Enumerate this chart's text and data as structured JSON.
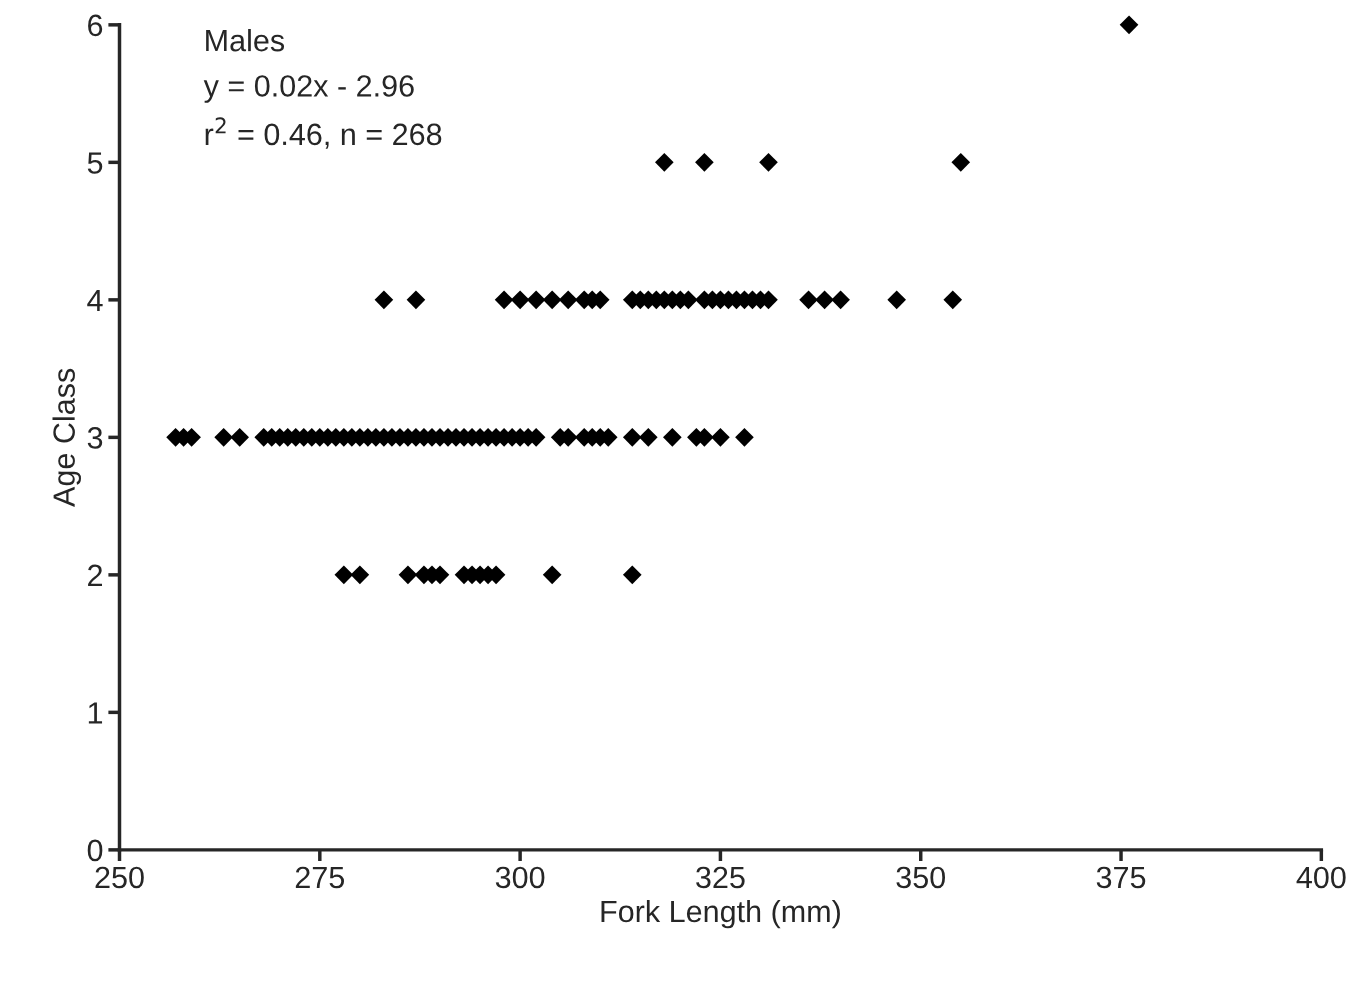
{
  "chart_data": {
    "type": "scatter",
    "xlabel": "Fork Length (mm)",
    "ylabel": "Age Class",
    "annotations": [
      "Males",
      "y = 0.02x - 2.96",
      "r$^{2}$ = 0.46, n = 268"
    ],
    "series": [
      {
        "color": "#000000",
        "x": [
          257,
          258,
          259,
          263,
          265,
          268,
          269,
          270,
          271,
          272,
          273,
          274,
          275,
          276,
          277,
          278,
          279,
          280,
          281,
          282,
          283,
          284,
          285,
          286,
          287,
          288,
          289,
          290,
          291,
          292,
          293,
          294,
          295,
          296,
          297,
          298,
          299,
          300,
          301,
          302,
          305,
          306,
          308,
          309,
          310,
          311,
          314,
          316,
          319,
          322,
          323,
          325,
          328,
          283,
          287,
          298,
          300,
          302,
          304,
          306,
          308,
          309,
          310,
          314,
          315,
          316,
          317,
          318,
          319,
          320,
          321,
          323,
          324,
          325,
          326,
          327,
          328,
          329,
          330,
          331,
          336,
          338,
          340,
          347,
          354,
          278,
          280,
          286,
          288,
          289,
          290,
          293,
          294,
          295,
          296,
          297,
          304,
          314,
          318,
          323,
          331,
          355,
          376
        ],
        "values": [
          3,
          3,
          3,
          3,
          3,
          3,
          3,
          3,
          3,
          3,
          3,
          3,
          3,
          3,
          3,
          3,
          3,
          3,
          3,
          3,
          3,
          3,
          3,
          3,
          3,
          3,
          3,
          3,
          3,
          3,
          3,
          3,
          3,
          3,
          3,
          3,
          3,
          3,
          3,
          3,
          3,
          3,
          3,
          3,
          3,
          3,
          3,
          3,
          3,
          3,
          3,
          3,
          3,
          4,
          4,
          4,
          4,
          4,
          4,
          4,
          4,
          4,
          4,
          4,
          4,
          4,
          4,
          4,
          4,
          4,
          4,
          4,
          4,
          4,
          4,
          4,
          4,
          4,
          4,
          4,
          4,
          4,
          4,
          4,
          4,
          2,
          2,
          2,
          2,
          2,
          2,
          2,
          2,
          2,
          2,
          2,
          2,
          2,
          5,
          5,
          5,
          5,
          6
        ]
      }
    ],
    "xlim": [
      250,
      400
    ],
    "xticks": [
      250,
      275,
      300,
      325,
      350,
      375,
      400
    ],
    "ylim": [
      0,
      6
    ],
    "yticks": [
      0,
      1,
      2,
      3,
      4,
      5,
      6
    ],
    "marker": "diamond",
    "grid": false,
    "legend": false
  }
}
